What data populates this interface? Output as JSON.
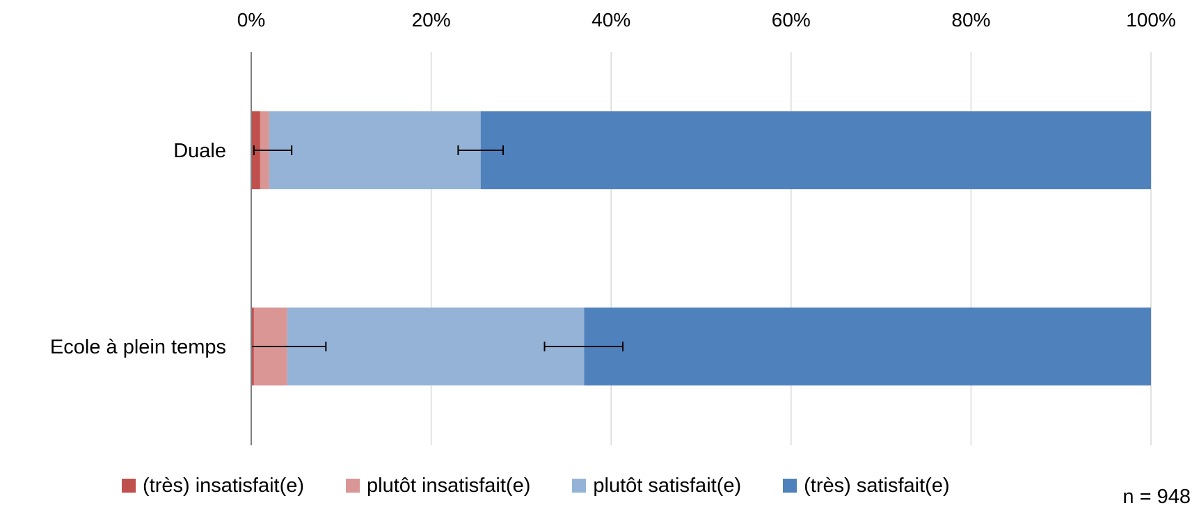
{
  "chart_data": {
    "type": "bar",
    "orientation": "horizontal",
    "stacked": true,
    "categories": [
      "Duale",
      "Ecole à plein temps"
    ],
    "series": [
      {
        "name": "(très) insatisfait(e)",
        "color": "#C0504D",
        "values": [
          1.0,
          0.3
        ]
      },
      {
        "name": "plutôt insatisfait(e)",
        "color": "#D99694",
        "values": [
          1.0,
          3.7
        ]
      },
      {
        "name": "plutôt satisfait(e)",
        "color": "#95B3D7",
        "values": [
          23.5,
          33.0
        ]
      },
      {
        "name": "(très) satisfait(e)",
        "color": "#4F81BD",
        "values": [
          74.5,
          63.0
        ]
      }
    ],
    "error_bars": [
      {
        "category": "Duale",
        "cumulative_value": 2.0,
        "low": 0.3,
        "high": 4.5
      },
      {
        "category": "Duale",
        "cumulative_value": 25.5,
        "low": 23.0,
        "high": 28.0
      },
      {
        "category": "Ecole à plein temps",
        "cumulative_value": 4.0,
        "low": 0.0,
        "high": 8.3
      },
      {
        "category": "Ecole à plein temps",
        "cumulative_value": 37.0,
        "low": 32.6,
        "high": 41.3
      }
    ],
    "x_axis": {
      "position": "top",
      "ticks": [
        "0%",
        "20%",
        "40%",
        "60%",
        "80%",
        "100%"
      ],
      "tick_values": [
        0,
        20,
        40,
        60,
        80,
        100
      ],
      "range": [
        0,
        100
      ]
    },
    "grid": true,
    "legend_position": "bottom"
  },
  "note": "n = 948"
}
